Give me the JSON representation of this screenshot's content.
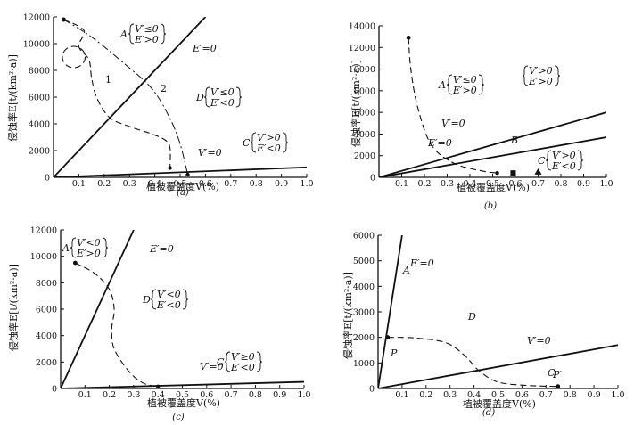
{
  "chart_data": [
    {
      "id": "a",
      "type": "line",
      "caption": "(a)",
      "xlabel": "植被覆盖度V(%)",
      "ylabel": "侵蚀率E[t/(km²·a)]",
      "xlim": [
        0,
        1.0
      ],
      "ylim": [
        0,
        12000
      ],
      "xticks": [
        0.1,
        0.2,
        0.3,
        0.4,
        0.5,
        0.6,
        0.7,
        0.8,
        0.9,
        1.0
      ],
      "yticks": [
        0,
        2000,
        4000,
        6000,
        8000,
        10000,
        12000
      ],
      "boundaries": [
        {
          "label": "E′=0",
          "points": [
            [
              0,
              0
            ],
            [
              0.6,
              12000
            ]
          ]
        },
        {
          "label": "V′=0",
          "points": [
            [
              0,
              0
            ],
            [
              1.0,
              750
            ]
          ]
        }
      ],
      "trajectories": [
        {
          "label": "1",
          "style": "dashed",
          "points": [
            [
              0.04,
              11800
            ],
            [
              0.12,
              11000
            ],
            [
              0.1,
              9800
            ],
            [
              0.14,
              8800
            ],
            [
              0.15,
              7500
            ],
            [
              0.17,
              6000
            ],
            [
              0.22,
              4500
            ],
            [
              0.3,
              3800
            ],
            [
              0.38,
              3300
            ],
            [
              0.44,
              2800
            ],
            [
              0.46,
              2200
            ],
            [
              0.46,
              700
            ]
          ]
        },
        {
          "label": "2",
          "style": "dash-dot",
          "points": [
            [
              0.04,
              11800
            ],
            [
              0.15,
              10500
            ],
            [
              0.28,
              8500
            ],
            [
              0.39,
              6600
            ],
            [
              0.46,
              4400
            ],
            [
              0.5,
              2500
            ],
            [
              0.53,
              200
            ]
          ]
        }
      ],
      "loop": {
        "cx": 0.08,
        "cy": 9000,
        "rx": 0.045,
        "ry": 800
      },
      "regions": [
        {
          "name": "A",
          "cond1": "V′≤0",
          "cond2": "E′>0"
        },
        {
          "name": "D",
          "cond1": "V′≤0",
          "cond2": "E′<0"
        },
        {
          "name": "C",
          "cond1": "V′>0",
          "cond2": "E′<0"
        }
      ],
      "eq_labels": [
        "E′=0",
        "V′=0"
      ],
      "curve_labels": [
        "1",
        "2"
      ],
      "tick_labels": [
        "0",
        "2000",
        "4000",
        "6000",
        "8000",
        "10000",
        "12000",
        "0.1",
        "0.2",
        "0.3",
        "0.4",
        "0.5",
        "0.6",
        "0.7",
        "0.8",
        "0.9",
        "1.0"
      ]
    },
    {
      "id": "b",
      "type": "line",
      "caption": "(b)",
      "xlabel": "植被覆盖度V(%)",
      "ylabel": "侵蚀率E[t/(km²·a)]",
      "xlim": [
        0,
        1.0
      ],
      "ylim": [
        0,
        14000
      ],
      "xticks": [
        0.1,
        0.2,
        0.3,
        0.4,
        0.5,
        0.6,
        0.7,
        0.8,
        0.9,
        1.0
      ],
      "yticks": [
        0,
        2000,
        4000,
        6000,
        8000,
        10000,
        12000,
        14000
      ],
      "boundaries": [
        {
          "label": "V′=0",
          "points": [
            [
              0,
              0
            ],
            [
              1.0,
              6000
            ]
          ]
        },
        {
          "label": "E′=0",
          "points": [
            [
              0,
              0
            ],
            [
              1.0,
              3700
            ]
          ]
        }
      ],
      "trajectories": [
        {
          "label": "",
          "style": "dashed",
          "points": [
            [
              0.13,
              12900
            ],
            [
              0.14,
              10000
            ],
            [
              0.17,
              6500
            ],
            [
              0.23,
              3000
            ],
            [
              0.33,
              1300
            ],
            [
              0.45,
              600
            ],
            [
              0.52,
              400
            ]
          ]
        }
      ],
      "markers": [
        {
          "shape": "square",
          "x": 0.59,
          "y": 400
        },
        {
          "shape": "triangle",
          "x": 0.7,
          "y": 500
        }
      ],
      "regions": [
        {
          "name": "A",
          "cond1": "V′≤0",
          "cond2": "E′>0"
        },
        {
          "name": "",
          "cond1": "V′>0",
          "cond2": "E′>0"
        },
        {
          "name": "B",
          "cond1": "",
          "cond2": ""
        },
        {
          "name": "C",
          "cond1": "V′>0",
          "cond2": "E′<0"
        }
      ],
      "eq_labels": [
        "V′=0",
        "E′=0"
      ],
      "tick_labels": [
        "0",
        "2000",
        "4000",
        "6000",
        "8000",
        "10000",
        "12000",
        "14000",
        "0.1",
        "0.2",
        "0.3",
        "0.4",
        "0.5",
        "0.6",
        "0.7",
        "0.8",
        "0.9",
        "1.0"
      ]
    },
    {
      "id": "c",
      "type": "line",
      "caption": "(c)",
      "xlabel": "植被覆盖度V(%)",
      "ylabel": "侵蚀率E[t/(km²·a)]",
      "xlim": [
        0,
        1.0
      ],
      "ylim": [
        0,
        12000
      ],
      "xticks": [
        0.1,
        0.2,
        0.3,
        0.4,
        0.5,
        0.6,
        0.7,
        0.8,
        0.9,
        1.0
      ],
      "yticks": [
        0,
        2000,
        4000,
        6000,
        8000,
        10000,
        12000
      ],
      "boundaries": [
        {
          "label": "E′=0",
          "points": [
            [
              0,
              0
            ],
            [
              0.3,
              12000
            ]
          ]
        },
        {
          "label": "V′=0",
          "points": [
            [
              0,
              0
            ],
            [
              1.0,
              500
            ]
          ]
        }
      ],
      "trajectories": [
        {
          "label": "",
          "style": "dashed",
          "points": [
            [
              0.06,
              9500
            ],
            [
              0.14,
              8700
            ],
            [
              0.2,
              7500
            ],
            [
              0.22,
              6000
            ],
            [
              0.21,
              4500
            ],
            [
              0.22,
              3000
            ],
            [
              0.28,
              1300
            ],
            [
              0.34,
              400
            ],
            [
              0.4,
              150
            ]
          ]
        }
      ],
      "regions": [
        {
          "name": "A",
          "cond1": "V′<0",
          "cond2": "E′>0"
        },
        {
          "name": "D",
          "cond1": "V′<0",
          "cond2": "E′<0"
        },
        {
          "name": "C",
          "cond1": "V′≥0",
          "cond2": "E′<0"
        }
      ],
      "eq_labels": [
        "E′=0",
        "V′=0"
      ],
      "tick_labels": [
        "0",
        "2000",
        "4000",
        "6000",
        "8000",
        "10000",
        "12000",
        "0.1",
        "0.2",
        "0.3",
        "0.4",
        "0.5",
        "0.6",
        "0.7",
        "0.8",
        "0.9",
        "1.0"
      ]
    },
    {
      "id": "d",
      "type": "line",
      "caption": "(d)",
      "xlabel": "植被覆盖度V(%)",
      "ylabel": "侵蚀率E[t/(km²·a)]",
      "xlim": [
        0,
        1.0
      ],
      "ylim": [
        0,
        6000
      ],
      "xticks": [
        0.1,
        0.2,
        0.3,
        0.4,
        0.5,
        0.6,
        0.7,
        0.8,
        0.9,
        1.0
      ],
      "yticks": [
        0,
        1000,
        2000,
        3000,
        4000,
        5000,
        6000
      ],
      "boundaries": [
        {
          "label": "E′=0",
          "points": [
            [
              0,
              0
            ],
            [
              0.1,
              6000
            ]
          ]
        },
        {
          "label": "V′=0",
          "points": [
            [
              0,
              0
            ],
            [
              1.0,
              1700
            ]
          ]
        }
      ],
      "trajectories": [
        {
          "label": "",
          "style": "dashed",
          "points": [
            [
              0.04,
              2000
            ],
            [
              0.15,
              1980
            ],
            [
              0.28,
              1800
            ],
            [
              0.36,
              1300
            ],
            [
              0.42,
              700
            ],
            [
              0.5,
              250
            ],
            [
              0.62,
              120
            ],
            [
              0.75,
              80
            ]
          ]
        }
      ],
      "points": [
        {
          "label": "P",
          "x": 0.04,
          "y": 2000
        },
        {
          "label": "P′",
          "x": 0.75,
          "y": 80
        }
      ],
      "regions": [
        {
          "name": "A",
          "cond1": "",
          "cond2": ""
        },
        {
          "name": "D",
          "cond1": "",
          "cond2": ""
        },
        {
          "name": "C",
          "cond1": "",
          "cond2": ""
        }
      ],
      "eq_labels": [
        "E′=0",
        "V′=0"
      ],
      "tick_labels": [
        "0",
        "1000",
        "2000",
        "3000",
        "4000",
        "5000",
        "6000",
        "0.1",
        "0.2",
        "0.3",
        "0.4",
        "0.5",
        "0.6",
        "0.7",
        "0.8",
        "0.9",
        "1.0"
      ]
    }
  ]
}
